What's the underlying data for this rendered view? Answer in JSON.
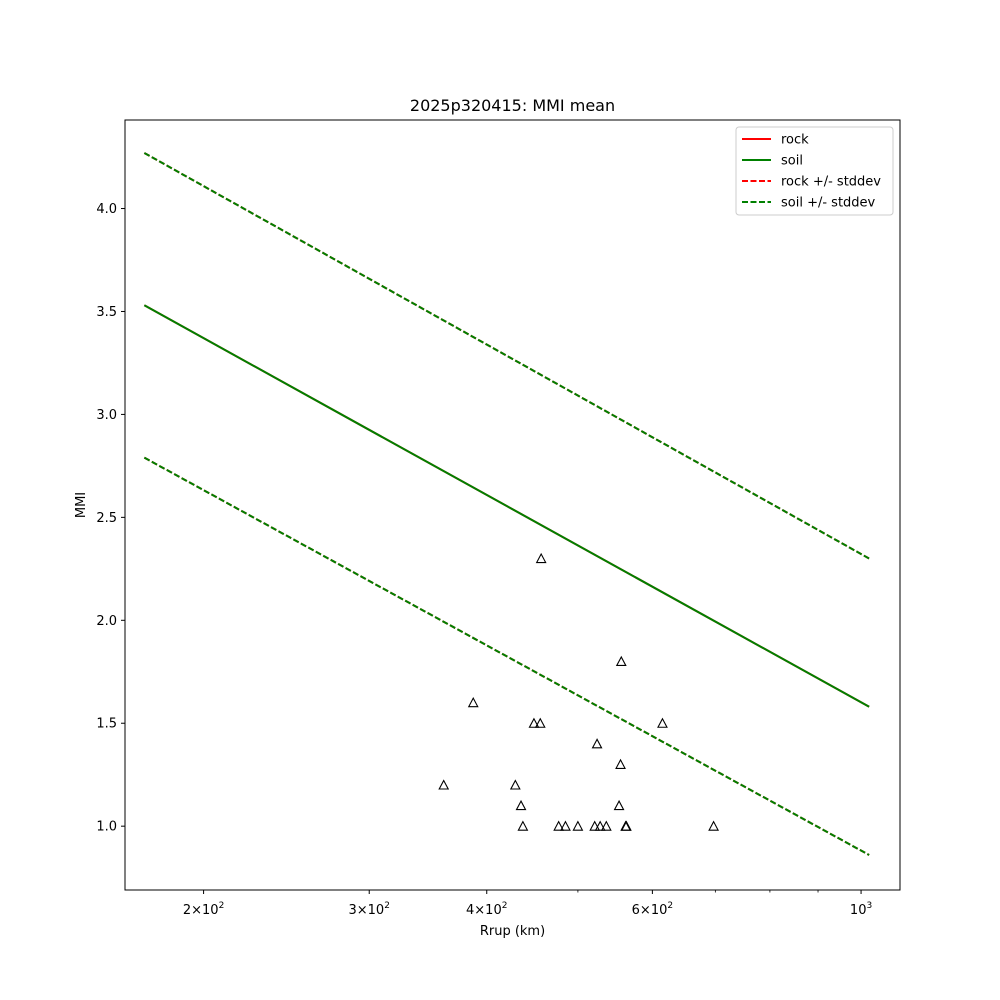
{
  "chart_data": {
    "type": "line",
    "title": "2025p320415: MMI mean",
    "xlabel": "Rrup (km)",
    "ylabel": "MMI",
    "x_scale": "log",
    "xlim": [
      165,
      1100
    ],
    "ylim": [
      0.69,
      4.43
    ],
    "x_ticks": [
      {
        "value": 200,
        "base": "2",
        "exp": "2"
      },
      {
        "value": 300,
        "base": "3",
        "exp": "2"
      },
      {
        "value": 400,
        "base": "4",
        "exp": "2"
      },
      {
        "value": 600,
        "base": "6",
        "exp": "2"
      },
      {
        "value": 1000,
        "base": "",
        "exp": "3"
      }
    ],
    "x_minor_ticks": [
      500,
      700,
      800,
      900
    ],
    "y_ticks": [
      {
        "value": 1.0,
        "label": "1.0"
      },
      {
        "value": 1.5,
        "label": "1.5"
      },
      {
        "value": 2.0,
        "label": "2.0"
      },
      {
        "value": 2.5,
        "label": "2.5"
      },
      {
        "value": 3.0,
        "label": "3.0"
      },
      {
        "value": 3.5,
        "label": "3.5"
      },
      {
        "value": 4.0,
        "label": "4.0"
      }
    ],
    "grid": false,
    "legend_position": "top-right",
    "series": [
      {
        "name": "rock",
        "color": "#ff0000",
        "style": "solid",
        "x": [
          173,
          1020
        ],
        "y": [
          3.53,
          1.58
        ]
      },
      {
        "name": "soil",
        "color": "#008000",
        "style": "solid",
        "x": [
          173,
          1020
        ],
        "y": [
          3.53,
          1.58
        ]
      },
      {
        "name": "rock +/- stddev",
        "color": "#ff0000",
        "style": "dashed",
        "x": [
          173,
          1020
        ],
        "y": [
          4.27,
          2.3
        ],
        "y_lower": [
          2.79,
          0.86
        ]
      },
      {
        "name": "soil +/- stddev",
        "color": "#008000",
        "style": "dashed",
        "x": [
          173,
          1020
        ],
        "y": [
          4.27,
          2.3
        ],
        "y_lower": [
          2.79,
          0.86
        ]
      }
    ],
    "observations": {
      "marker": "triangle",
      "points": [
        {
          "x": 360,
          "y": 1.2
        },
        {
          "x": 387,
          "y": 1.6
        },
        {
          "x": 429,
          "y": 1.2
        },
        {
          "x": 435,
          "y": 1.1
        },
        {
          "x": 437,
          "y": 1.0
        },
        {
          "x": 449,
          "y": 1.5
        },
        {
          "x": 456,
          "y": 1.5
        },
        {
          "x": 457,
          "y": 2.3
        },
        {
          "x": 477,
          "y": 1.0
        },
        {
          "x": 485,
          "y": 1.0
        },
        {
          "x": 500,
          "y": 1.0
        },
        {
          "x": 521,
          "y": 1.0
        },
        {
          "x": 524,
          "y": 1.4
        },
        {
          "x": 528,
          "y": 1.0
        },
        {
          "x": 536,
          "y": 1.0
        },
        {
          "x": 553,
          "y": 1.1
        },
        {
          "x": 555,
          "y": 1.3
        },
        {
          "x": 556,
          "y": 1.8
        },
        {
          "x": 562,
          "y": 1.0
        },
        {
          "x": 563,
          "y": 1.0
        },
        {
          "x": 615,
          "y": 1.5
        },
        {
          "x": 697,
          "y": 1.0
        }
      ]
    }
  }
}
